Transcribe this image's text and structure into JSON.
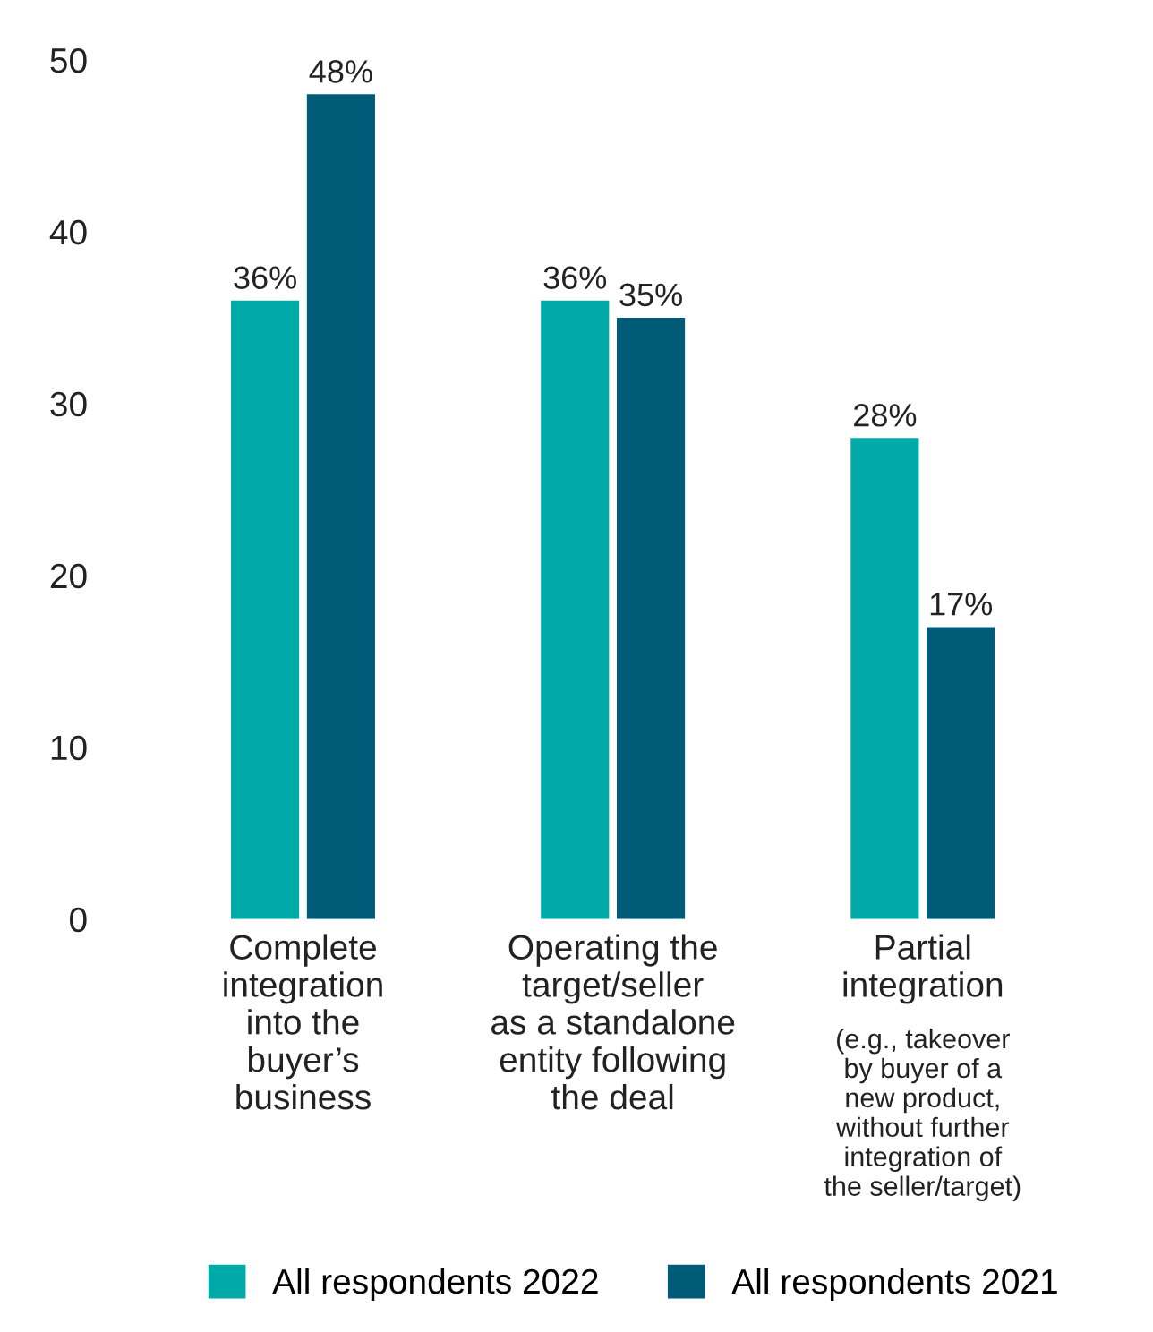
{
  "chart_data": {
    "type": "bar",
    "categories": [
      "Complete\nintegration\ninto the\nbuyer’s\nbusiness",
      "Operating the\ntarget/seller\nas a standalone\nentity following\nthe deal",
      "Partial\nintegration"
    ],
    "series": [
      {
        "name": "All respondents 2022",
        "color": "#00aaa7",
        "values": [
          36,
          36,
          28
        ],
        "value_labels": [
          "36%",
          "36%",
          "28%"
        ]
      },
      {
        "name": "All respondents 2021",
        "color": "#005b78",
        "values": [
          48,
          35,
          17
        ],
        "value_labels": [
          "48%",
          "35%",
          "17%"
        ]
      }
    ],
    "ylim": [
      0,
      50
    ],
    "yticks": [
      0,
      10,
      20,
      30,
      40,
      50
    ],
    "annotations": [
      "(e.g., takeover\nby buyer of a\nnew product,\nwithout further\nintegration of\nthe seller/target)"
    ],
    "grid": false,
    "legend": "bottom"
  }
}
